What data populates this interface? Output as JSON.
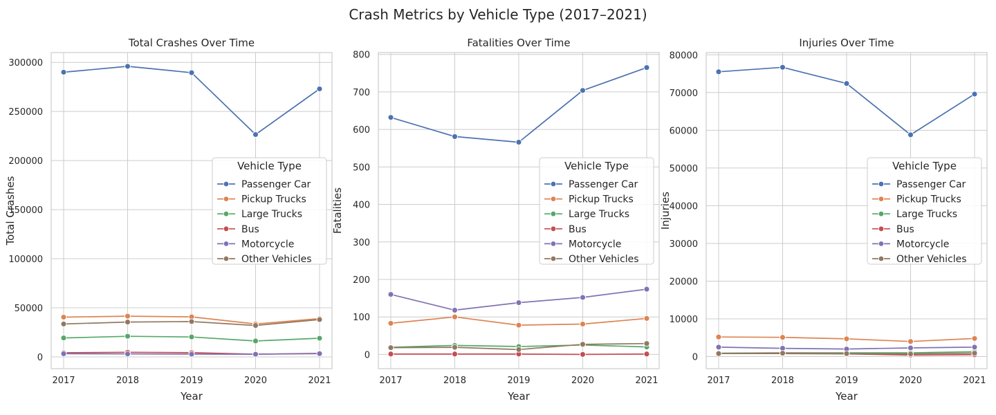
{
  "figure": {
    "suptitle": "Crash Metrics by Vehicle Type (2017–2021)"
  },
  "palette": {
    "Passenger Car": "#4c72b0",
    "Pickup Trucks": "#dd8452",
    "Large Trucks": "#55a868",
    "Bus": "#c44e52",
    "Motorcycle": "#8172b3",
    "Other Vehicles": "#937860"
  },
  "legend": {
    "title": "Vehicle Type",
    "placement": "center-right"
  },
  "chart_data": [
    {
      "type": "line",
      "title": "Total Crashes Over Time",
      "xlabel": "Year",
      "ylabel": "Total Crashes",
      "x": [
        2017,
        2018,
        2019,
        2020,
        2021
      ],
      "ylim": [
        -12000,
        310000
      ],
      "yticks": [
        0,
        50000,
        100000,
        150000,
        200000,
        250000,
        300000
      ],
      "grid": true,
      "series": [
        {
          "name": "Passenger Car",
          "values": [
            290000,
            296000,
            289500,
            226500,
            273000
          ]
        },
        {
          "name": "Pickup Trucks",
          "values": [
            40500,
            41500,
            40800,
            33500,
            39000
          ]
        },
        {
          "name": "Large Trucks",
          "values": [
            19300,
            21000,
            20300,
            16200,
            19000
          ]
        },
        {
          "name": "Bus",
          "values": [
            4200,
            4700,
            4300,
            2700,
            3600
          ]
        },
        {
          "name": "Motorcycle",
          "values": [
            3200,
            3000,
            2800,
            2700,
            3300
          ]
        },
        {
          "name": "Other Vehicles",
          "values": [
            33500,
            35500,
            36000,
            32000,
            38000
          ]
        }
      ]
    },
    {
      "type": "line",
      "title": "Fatalities Over Time",
      "xlabel": "Year",
      "ylabel": "Fatalities",
      "x": [
        2017,
        2018,
        2019,
        2020,
        2021
      ],
      "ylim": [
        -38,
        805
      ],
      "yticks": [
        0,
        100,
        200,
        300,
        400,
        500,
        600,
        700,
        800
      ],
      "grid": true,
      "series": [
        {
          "name": "Passenger Car",
          "values": [
            632,
            581,
            566,
            704,
            765
          ]
        },
        {
          "name": "Pickup Trucks",
          "values": [
            83,
            100,
            78,
            81,
            96
          ]
        },
        {
          "name": "Large Trucks",
          "values": [
            19,
            24,
            21,
            25,
            20
          ]
        },
        {
          "name": "Bus",
          "values": [
            1,
            1,
            1,
            0,
            1
          ]
        },
        {
          "name": "Motorcycle",
          "values": [
            160,
            118,
            138,
            152,
            174
          ]
        },
        {
          "name": "Other Vehicles",
          "values": [
            18,
            19,
            13,
            27,
            29
          ]
        }
      ]
    },
    {
      "type": "line",
      "title": "Injuries Over Time",
      "xlabel": "Year",
      "ylabel": "Injuries",
      "x": [
        2017,
        2018,
        2019,
        2020,
        2021
      ],
      "ylim": [
        -3200,
        80600
      ],
      "yticks": [
        0,
        10000,
        20000,
        30000,
        40000,
        50000,
        60000,
        70000,
        80000
      ],
      "grid": true,
      "series": [
        {
          "name": "Passenger Car",
          "values": [
            75500,
            76700,
            72400,
            58800,
            69600
          ]
        },
        {
          "name": "Pickup Trucks",
          "values": [
            5200,
            5100,
            4700,
            4000,
            4800
          ]
        },
        {
          "name": "Large Trucks",
          "values": [
            900,
            1000,
            1000,
            1000,
            1300
          ]
        },
        {
          "name": "Bus",
          "values": [
            800,
            800,
            700,
            400,
            500
          ]
        },
        {
          "name": "Motorcycle",
          "values": [
            2500,
            2200,
            2000,
            2300,
            2500
          ]
        },
        {
          "name": "Other Vehicles",
          "values": [
            800,
            900,
            800,
            700,
            900
          ]
        }
      ]
    }
  ]
}
